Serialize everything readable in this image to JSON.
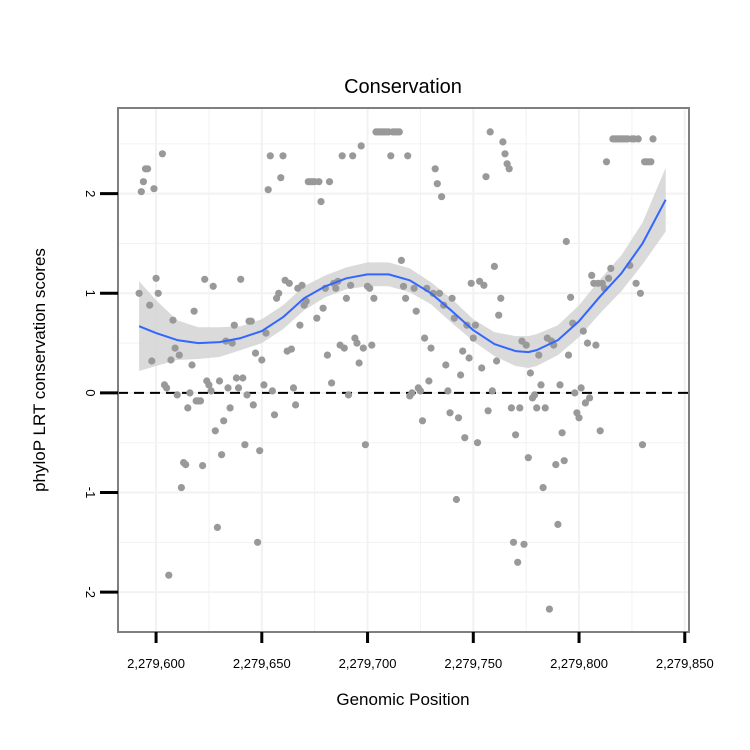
{
  "chart_data": {
    "type": "scatter",
    "title": "Conservation",
    "xlabel": "Genomic Position",
    "ylabel": "phyloP LRT conservation scores",
    "xlim": [
      2279582,
      2279852
    ],
    "ylim": [
      -2.4,
      2.86
    ],
    "x_ticks": [
      2279600,
      2279650,
      2279700,
      2279750,
      2279800,
      2279850
    ],
    "x_tick_labels": [
      "2,279,600",
      "2,279,650",
      "2,279,700",
      "2,279,750",
      "2,279,800",
      "2,279,850"
    ],
    "y_ticks": [
      -2,
      -1,
      0,
      1,
      2
    ],
    "y_tick_labels": [
      "-2",
      "-1",
      "0",
      "1",
      "2"
    ],
    "grid": true,
    "reference_line": {
      "y": 0,
      "style": "dashed"
    },
    "colors": {
      "points": "#999999",
      "smooth": "#3366FF",
      "band": "#D3D3D3",
      "border": "#7F7F7F",
      "grid": "#F2F2F2"
    },
    "points": [
      [
        2279592,
        1.0
      ],
      [
        2279593,
        2.02
      ],
      [
        2279594,
        2.12
      ],
      [
        2279595,
        2.25
      ],
      [
        2279596,
        2.25
      ],
      [
        2279597,
        0.88
      ],
      [
        2279598,
        0.32
      ],
      [
        2279599,
        2.05
      ],
      [
        2279600,
        1.15
      ],
      [
        2279601,
        1.0
      ],
      [
        2279603,
        2.4
      ],
      [
        2279604,
        0.08
      ],
      [
        2279605,
        0.05
      ],
      [
        2279606,
        -1.83
      ],
      [
        2279607,
        0.33
      ],
      [
        2279608,
        0.73
      ],
      [
        2279609,
        0.45
      ],
      [
        2279610,
        -0.02
      ],
      [
        2279611,
        0.38
      ],
      [
        2279612,
        -0.95
      ],
      [
        2279613,
        -0.7
      ],
      [
        2279614,
        -0.72
      ],
      [
        2279615,
        -0.15
      ],
      [
        2279616,
        0.0
      ],
      [
        2279617,
        0.28
      ],
      [
        2279618,
        0.82
      ],
      [
        2279619,
        -0.08
      ],
      [
        2279620,
        -0.08
      ],
      [
        2279621,
        -0.08
      ],
      [
        2279622,
        -0.73
      ],
      [
        2279623,
        1.14
      ],
      [
        2279624,
        0.12
      ],
      [
        2279625,
        0.08
      ],
      [
        2279626,
        0.02
      ],
      [
        2279627,
        1.07
      ],
      [
        2279628,
        -0.38
      ],
      [
        2279629,
        -1.35
      ],
      [
        2279630,
        0.12
      ],
      [
        2279631,
        -0.62
      ],
      [
        2279632,
        -0.28
      ],
      [
        2279633,
        0.52
      ],
      [
        2279634,
        0.05
      ],
      [
        2279635,
        -0.15
      ],
      [
        2279636,
        0.5
      ],
      [
        2279637,
        0.68
      ],
      [
        2279638,
        0.15
      ],
      [
        2279639,
        0.05
      ],
      [
        2279640,
        1.14
      ],
      [
        2279641,
        0.15
      ],
      [
        2279642,
        -0.52
      ],
      [
        2279643,
        -0.02
      ],
      [
        2279644,
        0.72
      ],
      [
        2279645,
        0.72
      ],
      [
        2279646,
        -0.12
      ],
      [
        2279647,
        0.4
      ],
      [
        2279648,
        -1.5
      ],
      [
        2279649,
        -0.58
      ],
      [
        2279650,
        0.33
      ],
      [
        2279651,
        0.08
      ],
      [
        2279652,
        0.6
      ],
      [
        2279653,
        2.04
      ],
      [
        2279654,
        2.38
      ],
      [
        2279655,
        0.02
      ],
      [
        2279656,
        -0.22
      ],
      [
        2279657,
        0.95
      ],
      [
        2279658,
        1.0
      ],
      [
        2279659,
        2.16
      ],
      [
        2279660,
        2.38
      ],
      [
        2279661,
        1.13
      ],
      [
        2279662,
        0.42
      ],
      [
        2279663,
        1.1
      ],
      [
        2279664,
        0.44
      ],
      [
        2279665,
        0.05
      ],
      [
        2279666,
        -0.12
      ],
      [
        2279667,
        1.05
      ],
      [
        2279668,
        0.68
      ],
      [
        2279669,
        1.08
      ],
      [
        2279670,
        0.88
      ],
      [
        2279671,
        0.92
      ],
      [
        2279672,
        2.12
      ],
      [
        2279673,
        2.12
      ],
      [
        2279674,
        2.12
      ],
      [
        2279675,
        2.12
      ],
      [
        2279676,
        0.75
      ],
      [
        2279677,
        2.12
      ],
      [
        2279678,
        1.92
      ],
      [
        2279679,
        0.85
      ],
      [
        2279680,
        1.05
      ],
      [
        2279681,
        0.38
      ],
      [
        2279682,
        2.12
      ],
      [
        2279683,
        0.1
      ],
      [
        2279684,
        1.1
      ],
      [
        2279685,
        1.05
      ],
      [
        2279686,
        1.12
      ],
      [
        2279687,
        0.48
      ],
      [
        2279688,
        2.38
      ],
      [
        2279689,
        0.45
      ],
      [
        2279690,
        0.95
      ],
      [
        2279691,
        -0.02
      ],
      [
        2279692,
        1.08
      ],
      [
        2279693,
        2.38
      ],
      [
        2279694,
        0.55
      ],
      [
        2279695,
        0.5
      ],
      [
        2279696,
        0.3
      ],
      [
        2279697,
        2.48
      ],
      [
        2279698,
        0.45
      ],
      [
        2279699,
        -0.52
      ],
      [
        2279700,
        1.07
      ],
      [
        2279701,
        1.05
      ],
      [
        2279702,
        0.48
      ],
      [
        2279703,
        0.95
      ],
      [
        2279704,
        2.62
      ],
      [
        2279705,
        2.62
      ],
      [
        2279706,
        2.62
      ],
      [
        2279707,
        2.62
      ],
      [
        2279708,
        2.62
      ],
      [
        2279709,
        2.62
      ],
      [
        2279710,
        2.62
      ],
      [
        2279711,
        2.38
      ],
      [
        2279712,
        2.62
      ],
      [
        2279713,
        2.62
      ],
      [
        2279714,
        2.62
      ],
      [
        2279715,
        2.62
      ],
      [
        2279716,
        1.33
      ],
      [
        2279717,
        1.07
      ],
      [
        2279718,
        0.95
      ],
      [
        2279719,
        2.38
      ],
      [
        2279720,
        -0.03
      ],
      [
        2279721,
        0.0
      ],
      [
        2279722,
        1.05
      ],
      [
        2279723,
        0.82
      ],
      [
        2279724,
        0.05
      ],
      [
        2279725,
        0.02
      ],
      [
        2279726,
        -0.28
      ],
      [
        2279727,
        0.55
      ],
      [
        2279728,
        1.05
      ],
      [
        2279729,
        0.12
      ],
      [
        2279730,
        0.45
      ],
      [
        2279731,
        1.0
      ],
      [
        2279732,
        2.25
      ],
      [
        2279733,
        2.1
      ],
      [
        2279734,
        1.0
      ],
      [
        2279735,
        1.97
      ],
      [
        2279736,
        0.88
      ],
      [
        2279737,
        0.28
      ],
      [
        2279738,
        0.02
      ],
      [
        2279739,
        -0.2
      ],
      [
        2279740,
        0.95
      ],
      [
        2279741,
        0.75
      ],
      [
        2279742,
        -1.07
      ],
      [
        2279743,
        -0.25
      ],
      [
        2279744,
        0.18
      ],
      [
        2279745,
        0.42
      ],
      [
        2279746,
        -0.45
      ],
      [
        2279747,
        0.68
      ],
      [
        2279748,
        0.35
      ],
      [
        2279749,
        1.1
      ],
      [
        2279750,
        0.55
      ],
      [
        2279751,
        0.68
      ],
      [
        2279752,
        -0.5
      ],
      [
        2279753,
        1.12
      ],
      [
        2279754,
        0.25
      ],
      [
        2279755,
        1.08
      ],
      [
        2279756,
        2.17
      ],
      [
        2279757,
        -0.18
      ],
      [
        2279758,
        2.62
      ],
      [
        2279759,
        0.02
      ],
      [
        2279760,
        1.27
      ],
      [
        2279761,
        0.32
      ],
      [
        2279762,
        0.78
      ],
      [
        2279763,
        0.95
      ],
      [
        2279764,
        2.52
      ],
      [
        2279765,
        2.4
      ],
      [
        2279766,
        2.3
      ],
      [
        2279767,
        2.25
      ],
      [
        2279768,
        -0.15
      ],
      [
        2279769,
        -1.5
      ],
      [
        2279770,
        -0.42
      ],
      [
        2279771,
        -1.7
      ],
      [
        2279772,
        -0.15
      ],
      [
        2279773,
        0.52
      ],
      [
        2279774,
        -1.52
      ],
      [
        2279775,
        0.48
      ],
      [
        2279776,
        -0.65
      ],
      [
        2279777,
        0.2
      ],
      [
        2279778,
        -0.05
      ],
      [
        2279779,
        -0.02
      ],
      [
        2279780,
        -0.15
      ],
      [
        2279781,
        0.38
      ],
      [
        2279782,
        0.08
      ],
      [
        2279783,
        -0.95
      ],
      [
        2279784,
        -0.15
      ],
      [
        2279785,
        0.55
      ],
      [
        2279786,
        -2.17
      ],
      [
        2279787,
        0.52
      ],
      [
        2279788,
        0.48
      ],
      [
        2279789,
        -0.72
      ],
      [
        2279790,
        -1.32
      ],
      [
        2279791,
        0.08
      ],
      [
        2279792,
        -0.4
      ],
      [
        2279793,
        -0.68
      ],
      [
        2279794,
        1.52
      ],
      [
        2279795,
        0.38
      ],
      [
        2279796,
        0.96
      ],
      [
        2279797,
        0.7
      ],
      [
        2279798,
        0.0
      ],
      [
        2279799,
        -0.2
      ],
      [
        2279800,
        -0.25
      ],
      [
        2279801,
        0.05
      ],
      [
        2279802,
        0.62
      ],
      [
        2279803,
        -0.1
      ],
      [
        2279804,
        0.5
      ],
      [
        2279805,
        -0.05
      ],
      [
        2279806,
        1.18
      ],
      [
        2279807,
        1.1
      ],
      [
        2279808,
        0.48
      ],
      [
        2279809,
        1.1
      ],
      [
        2279810,
        -0.38
      ],
      [
        2279811,
        1.1
      ],
      [
        2279812,
        1.05
      ],
      [
        2279813,
        2.32
      ],
      [
        2279814,
        1.15
      ],
      [
        2279815,
        1.25
      ],
      [
        2279816,
        2.55
      ],
      [
        2279817,
        2.55
      ],
      [
        2279818,
        2.55
      ],
      [
        2279819,
        2.55
      ],
      [
        2279820,
        2.55
      ],
      [
        2279821,
        2.55
      ],
      [
        2279822,
        2.55
      ],
      [
        2279823,
        2.55
      ],
      [
        2279824,
        1.28
      ],
      [
        2279825,
        2.55
      ],
      [
        2279826,
        2.55
      ],
      [
        2279827,
        1.1
      ],
      [
        2279828,
        2.55
      ],
      [
        2279829,
        1.0
      ],
      [
        2279830,
        -0.52
      ],
      [
        2279831,
        2.32
      ],
      [
        2279832,
        2.32
      ],
      [
        2279833,
        2.32
      ],
      [
        2279834,
        2.32
      ],
      [
        2279835,
        2.55
      ]
    ],
    "smooth_x": [
      2279592,
      2279600,
      2279610,
      2279620,
      2279630,
      2279640,
      2279650,
      2279660,
      2279670,
      2279680,
      2279690,
      2279700,
      2279710,
      2279720,
      2279730,
      2279740,
      2279750,
      2279760,
      2279770,
      2279776,
      2279780,
      2279790,
      2279800,
      2279810,
      2279820,
      2279830,
      2279841
    ],
    "smooth_y": [
      0.67,
      0.6,
      0.53,
      0.5,
      0.51,
      0.55,
      0.62,
      0.76,
      0.95,
      1.07,
      1.15,
      1.19,
      1.19,
      1.13,
      1.0,
      0.82,
      0.63,
      0.49,
      0.42,
      0.41,
      0.43,
      0.53,
      0.72,
      0.97,
      1.2,
      1.5,
      1.94
    ],
    "band_lower": [
      0.22,
      0.27,
      0.33,
      0.34,
      0.36,
      0.43,
      0.5,
      0.64,
      0.83,
      0.96,
      1.04,
      1.07,
      1.07,
      1.01,
      0.89,
      0.7,
      0.52,
      0.37,
      0.27,
      0.25,
      0.27,
      0.38,
      0.56,
      0.8,
      1.02,
      1.29,
      1.62
    ],
    "band_upper": [
      1.12,
      0.93,
      0.73,
      0.66,
      0.66,
      0.67,
      0.74,
      0.88,
      1.07,
      1.18,
      1.26,
      1.31,
      1.31,
      1.25,
      1.11,
      0.94,
      0.74,
      0.61,
      0.57,
      0.57,
      0.59,
      0.68,
      0.88,
      1.14,
      1.38,
      1.71,
      2.26
    ]
  }
}
